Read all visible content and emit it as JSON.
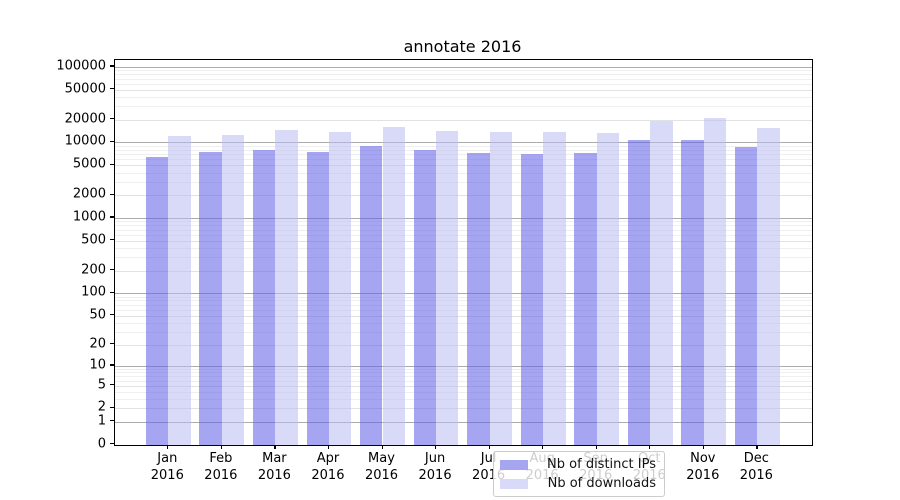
{
  "chart_data": {
    "type": "bar",
    "title": "annotate 2016",
    "categories": [
      "Jan",
      "Feb",
      "Mar",
      "Apr",
      "May",
      "Jun",
      "Jul",
      "Aug",
      "Sep",
      "Oct",
      "Nov",
      "Dec"
    ],
    "category_year_line": "2016",
    "series": [
      {
        "name": "Nb of distinct IPs",
        "color": "rgba(97,97,232,0.57)",
        "solid_color": "#a5a5f0",
        "values": [
          6500,
          7500,
          7900,
          7400,
          8900,
          8000,
          7200,
          7000,
          7300,
          10700,
          10900,
          8700
        ]
      },
      {
        "name": "Nb of downloads",
        "color": "rgba(186,186,243,0.55)",
        "solid_color": "#d9d9f9",
        "values": [
          12100,
          12600,
          14500,
          13800,
          16000,
          14300,
          13700,
          13800,
          13200,
          19300,
          20900,
          15700
        ]
      }
    ],
    "xlabel": "",
    "ylabel": "",
    "yscale": "log1p",
    "ylim": [
      0,
      122000
    ],
    "yticks": [
      0,
      1,
      2,
      5,
      10,
      20,
      50,
      100,
      200,
      500,
      1000,
      2000,
      5000,
      10000,
      20000,
      50000,
      100000
    ],
    "grid": "horizontal",
    "grid_colors": {
      "major": "#ababab",
      "medium": "#e2e2e2",
      "minor": "#efefef"
    },
    "legend_position": "lower-center"
  }
}
